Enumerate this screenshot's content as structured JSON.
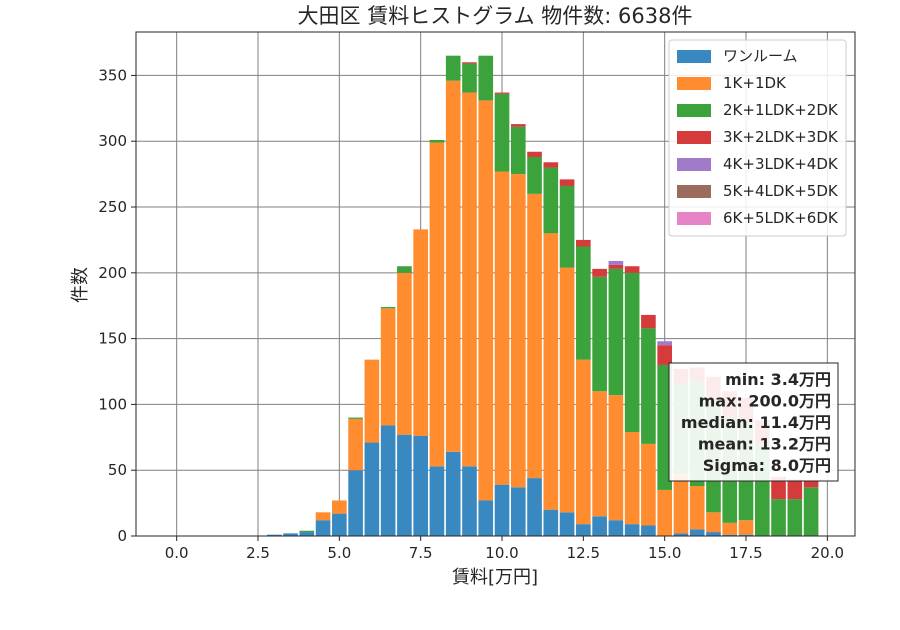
{
  "chart_data": {
    "type": "bar",
    "stacked": true,
    "title": "大田区 賃料ヒストグラム 物件数: 6638件",
    "xlabel": "賃料[万円]",
    "ylabel": "件数",
    "xlim": [
      -1.25,
      20.85
    ],
    "ylim": [
      0,
      383
    ],
    "xticks": [
      0,
      2.5,
      5,
      7.5,
      10,
      12.5,
      15,
      17.5,
      20
    ],
    "xtick_labels": [
      "0.0",
      "2.5",
      "5.0",
      "7.5",
      "10.0",
      "12.5",
      "15.0",
      "17.5",
      "20.0"
    ],
    "yticks": [
      0,
      50,
      100,
      150,
      200,
      250,
      300,
      350
    ],
    "ytick_labels": [
      "0",
      "50",
      "100",
      "150",
      "200",
      "250",
      "300",
      "350"
    ],
    "grid": true,
    "legend_position": "top-right",
    "bin_width": 0.5,
    "x": [
      3.0,
      3.5,
      4.0,
      4.5,
      5.0,
      5.5,
      6.0,
      6.5,
      7.0,
      7.5,
      8.0,
      8.5,
      9.0,
      9.5,
      10.0,
      10.5,
      11.0,
      11.5,
      12.0,
      12.5,
      13.0,
      13.5,
      14.0,
      14.5,
      15.0,
      15.5,
      16.0,
      16.5,
      17.0,
      17.5,
      18.0,
      18.5,
      19.0,
      19.5
    ],
    "series": [
      {
        "name": "ワンルーム",
        "color": "#3a88c0",
        "values": [
          1,
          2,
          3,
          12,
          17,
          50,
          71,
          84,
          77,
          76,
          53,
          64,
          53,
          27,
          39,
          37,
          44,
          20,
          18,
          9,
          15,
          12,
          9,
          8,
          0,
          2,
          5,
          3,
          1,
          1,
          0,
          0,
          0,
          0
        ]
      },
      {
        "name": "1K+1DK",
        "color": "#ff8c2e",
        "values": [
          0,
          0,
          0,
          6,
          10,
          39,
          63,
          89,
          123,
          157,
          246,
          282,
          284,
          304,
          238,
          238,
          216,
          210,
          186,
          125,
          95,
          95,
          70,
          62,
          35,
          45,
          33,
          15,
          9,
          11,
          0,
          0,
          0,
          0
        ]
      },
      {
        "name": "2K+1LDK+2DK",
        "color": "#3ca33c",
        "values": [
          0,
          0,
          1,
          0,
          0,
          1,
          0,
          1,
          5,
          0,
          2,
          19,
          22,
          34,
          59,
          36,
          28,
          50,
          62,
          86,
          87,
          96,
          121,
          88,
          95,
          68,
          80,
          85,
          80,
          75,
          70,
          28,
          28,
          37
        ]
      },
      {
        "name": "3K+2LDK+3DK",
        "color": "#d63b3b",
        "values": [
          0,
          0,
          0,
          0,
          0,
          0,
          0,
          0,
          0,
          0,
          0,
          0,
          1,
          0,
          1,
          2,
          4,
          4,
          5,
          5,
          6,
          3,
          5,
          10,
          15,
          12,
          10,
          18,
          20,
          18,
          18,
          17,
          15,
          5
        ]
      },
      {
        "name": "4K+3LDK+4DK",
        "color": "#a17ac9",
        "values": [
          0,
          0,
          0,
          0,
          0,
          0,
          0,
          0,
          0,
          0,
          0,
          0,
          0,
          0,
          0,
          0,
          0,
          0,
          0,
          0,
          0,
          3,
          0,
          0,
          3,
          0,
          0,
          0,
          0,
          0,
          0,
          0,
          0,
          0
        ]
      },
      {
        "name": "5K+4LDK+5DK",
        "color": "#9b6b5e",
        "values": [
          0,
          0,
          0,
          0,
          0,
          0,
          0,
          0,
          0,
          0,
          0,
          0,
          0,
          0,
          0,
          0,
          0,
          0,
          0,
          0,
          0,
          0,
          0,
          0,
          0,
          0,
          0,
          0,
          0,
          0,
          0,
          0,
          0,
          0
        ]
      },
      {
        "name": "6K+5LDK+6DK",
        "color": "#e684c5",
        "values": [
          0,
          0,
          0,
          0,
          0,
          0,
          0,
          0,
          0,
          0,
          0,
          0,
          0,
          0,
          0,
          0,
          0,
          0,
          0,
          0,
          0,
          0,
          0,
          0,
          0,
          0,
          0,
          0,
          0,
          0,
          0,
          0,
          0,
          0
        ]
      }
    ],
    "annotations": [
      "min: 3.4万円",
      "max: 200.0万円",
      "median: 11.4万円",
      "mean: 13.2万円",
      "Sigma: 8.0万円"
    ]
  }
}
